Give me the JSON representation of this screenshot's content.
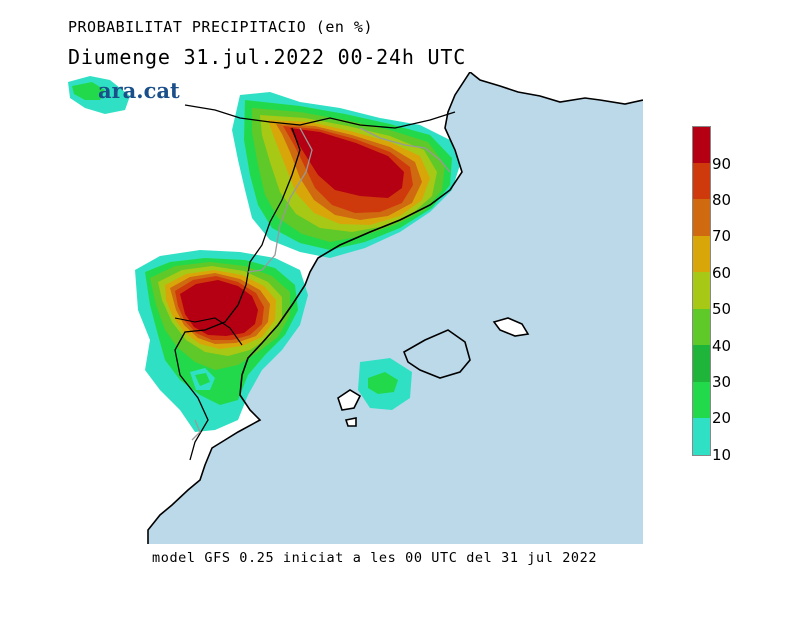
{
  "title": "PROBABILITAT PRECIPITACIO (en %)",
  "subtitle": "Diumenge  31.jul.2022 00-24h UTC",
  "footer": "model GFS 0.25 iniciat a les 00 UTC del 31 jul 2022",
  "logo": "ara.cat",
  "legend": {
    "labels": [
      "90",
      "80",
      "70",
      "60",
      "50",
      "40",
      "30",
      "20",
      "10"
    ],
    "colors": [
      "#b40012",
      "#cf3a0d",
      "#cf6a10",
      "#d9a60a",
      "#a8c816",
      "#5ec928",
      "#1fb53a",
      "#22d94c",
      "#30e0c4"
    ]
  },
  "colors": {
    "sea": "#bcd9ea",
    "land": "#ffffff",
    "coast": "#000000",
    "border": "#999999"
  }
}
